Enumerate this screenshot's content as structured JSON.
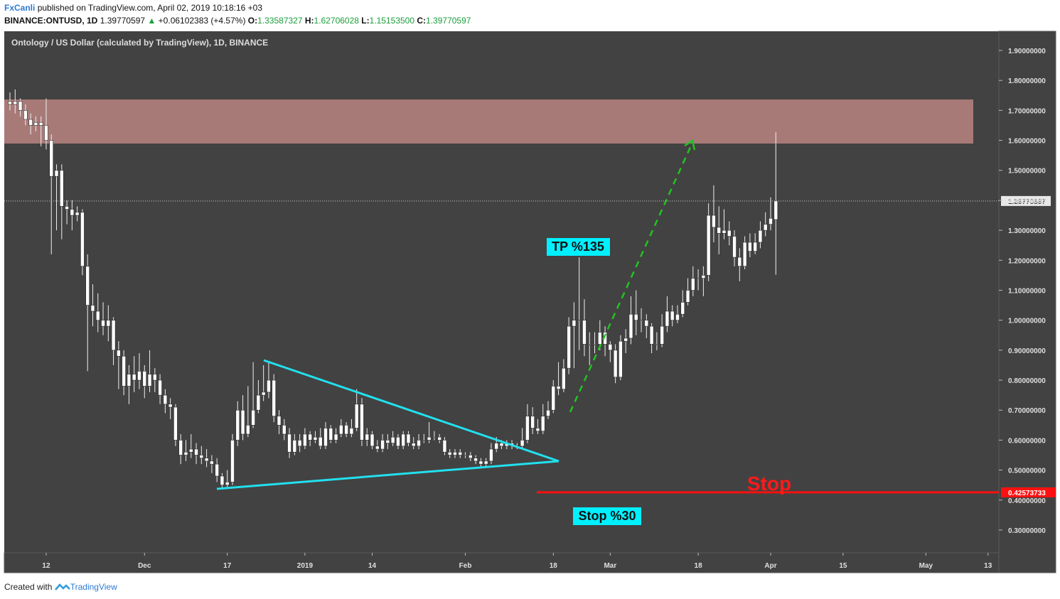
{
  "header": {
    "author": "FxCanli",
    "published": "published on TradingView.com, April 02, 2019 10:18:16 +03",
    "symbol": "BINANCE:ONTUSD, 1D",
    "last": "1.39770597",
    "change": "+0.06102383 (+4.57%)",
    "o_label": "O:",
    "o_value": "1.33587327",
    "h_label": "H:",
    "h_value": "1.62706028",
    "l_label": "L:",
    "l_value": "1.15153500",
    "c_label": "C:",
    "c_value": "1.39770597"
  },
  "footer": {
    "text": "Created with",
    "brand": "TradingView"
  },
  "chart_data": {
    "type": "candlestick",
    "title": "Ontology / US Dollar (calculated by TradingView), 1D, BINANCE",
    "up_color": "#ffffff",
    "down_color": "#ffffff",
    "xlim": [
      -1.1,
      191.1
    ],
    "xticks": [
      {
        "value": 7,
        "label": "12"
      },
      {
        "value": 26,
        "label": "Dec"
      },
      {
        "value": 42,
        "label": "17"
      },
      {
        "value": 57,
        "label": "2019"
      },
      {
        "value": 70,
        "label": "14"
      },
      {
        "value": 88,
        "label": "Feb"
      },
      {
        "value": 105,
        "label": "18"
      },
      {
        "value": 116,
        "label": "Mar"
      },
      {
        "value": 133,
        "label": "18"
      },
      {
        "value": 147,
        "label": "Apr"
      },
      {
        "value": 161,
        "label": "15"
      },
      {
        "value": 177,
        "label": "May"
      },
      {
        "value": 189,
        "label": "13"
      }
    ],
    "ylim": [
      0.224,
      1.964
    ],
    "yticks": [
      {
        "value": 0.3,
        "label": "0.30000000"
      },
      {
        "value": 0.4,
        "label": "0.40000000"
      },
      {
        "value": 0.5,
        "label": "0.50000000"
      },
      {
        "value": 0.6,
        "label": "0.60000000"
      },
      {
        "value": 0.7,
        "label": "0.70000000"
      },
      {
        "value": 0.8,
        "label": "0.80000000"
      },
      {
        "value": 0.9,
        "label": "0.90000000"
      },
      {
        "value": 1.0,
        "label": "1.00000000"
      },
      {
        "value": 1.1,
        "label": "1.10000000"
      },
      {
        "value": 1.2,
        "label": "1.20000000"
      },
      {
        "value": 1.3,
        "label": "1.30000000"
      },
      {
        "value": 1.4,
        "label": "1.40000000"
      },
      {
        "value": 1.5,
        "label": "1.50000000"
      },
      {
        "value": 1.6,
        "label": "1.60000000"
      },
      {
        "value": 1.7,
        "label": "1.70000000"
      },
      {
        "value": 1.8,
        "label": "1.80000000"
      },
      {
        "value": 1.9,
        "label": "1.90000000"
      }
    ],
    "open": [
      1.73,
      1.72,
      1.73,
      1.7,
      1.67,
      1.65,
      1.66,
      1.65,
      1.6,
      1.48,
      1.5,
      1.38,
      1.37,
      1.35,
      1.36,
      1.18,
      1.05,
      1.03,
      1.0,
      0.98,
      1.0,
      0.9,
      0.88,
      0.78,
      0.82,
      0.8,
      0.83,
      0.78,
      0.82,
      0.8,
      0.75,
      0.72,
      0.71,
      0.6,
      0.55,
      0.56,
      0.57,
      0.55,
      0.54,
      0.53,
      0.52,
      0.48,
      0.45,
      0.46,
      0.6,
      0.7,
      0.62,
      0.65,
      0.7,
      0.75,
      0.76,
      0.8,
      0.68,
      0.65,
      0.62,
      0.56,
      0.6,
      0.58,
      0.62,
      0.6,
      0.61,
      0.58,
      0.64,
      0.6,
      0.62,
      0.65,
      0.62,
      0.64,
      0.72,
      0.6,
      0.62,
      0.58,
      0.57,
      0.6,
      0.59,
      0.61,
      0.58,
      0.62,
      0.59,
      0.58,
      0.6,
      0.6,
      0.61,
      0.61,
      0.6,
      0.56,
      0.55,
      0.56,
      0.55,
      0.55,
      0.54,
      0.53,
      0.52,
      0.53,
      0.57,
      0.59,
      0.58,
      0.59,
      0.58,
      0.58,
      0.6,
      0.68,
      0.64,
      0.63,
      0.68,
      0.7,
      0.78,
      0.77,
      0.84,
      0.98,
      1.0,
      1.0,
      0.92,
      0.92,
      0.92,
      0.96,
      0.92,
      0.9,
      0.81,
      0.93,
      0.94,
      1.02,
      1.0,
      1.0,
      0.98,
      0.92,
      0.92,
      0.98,
      1.03,
      1.0,
      1.02,
      1.06,
      1.1,
      1.14,
      1.14,
      1.15,
      1.35,
      1.31,
      1.29,
      1.3,
      1.28,
      1.21,
      1.18,
      1.26,
      1.23,
      1.26,
      1.3,
      1.32,
      1.33587327
    ],
    "high": [
      1.76,
      1.77,
      1.74,
      1.72,
      1.69,
      1.68,
      1.68,
      1.74,
      1.62,
      1.52,
      1.52,
      1.4,
      1.4,
      1.38,
      1.37,
      1.22,
      1.12,
      1.09,
      1.06,
      1.05,
      1.01,
      0.93,
      0.9,
      0.85,
      0.88,
      0.89,
      0.85,
      0.9,
      0.84,
      0.82,
      0.77,
      0.74,
      0.72,
      0.62,
      0.6,
      0.62,
      0.59,
      0.58,
      0.57,
      0.55,
      0.54,
      0.49,
      0.5,
      0.62,
      0.73,
      0.75,
      0.78,
      0.86,
      0.8,
      0.85,
      0.86,
      0.82,
      0.7,
      0.67,
      0.64,
      0.62,
      0.62,
      0.64,
      0.63,
      0.63,
      0.64,
      0.66,
      0.65,
      0.64,
      0.67,
      0.66,
      0.67,
      0.77,
      0.74,
      0.64,
      0.63,
      0.6,
      0.62,
      0.62,
      0.63,
      0.62,
      0.63,
      0.63,
      0.61,
      0.62,
      0.62,
      0.66,
      0.63,
      0.62,
      0.61,
      0.57,
      0.57,
      0.57,
      0.56,
      0.56,
      0.55,
      0.54,
      0.54,
      0.59,
      0.61,
      0.6,
      0.6,
      0.6,
      0.59,
      0.64,
      0.72,
      0.71,
      0.67,
      0.72,
      0.73,
      0.8,
      0.86,
      0.87,
      1.01,
      1.06,
      1.21,
      1.07,
      0.96,
      0.96,
      1.0,
      0.98,
      0.93,
      0.92,
      0.95,
      0.97,
      1.08,
      1.1,
      1.04,
      1.02,
      0.99,
      0.96,
      1.02,
      1.08,
      1.05,
      1.05,
      1.1,
      1.14,
      1.18,
      1.17,
      1.18,
      1.39,
      1.45,
      1.38,
      1.37,
      1.33,
      1.3,
      1.24,
      1.28,
      1.29,
      1.29,
      1.33,
      1.36,
      1.41,
      1.62706028
    ],
    "low": [
      1.7,
      1.69,
      1.68,
      1.65,
      1.62,
      1.63,
      1.58,
      1.57,
      1.22,
      1.3,
      1.27,
      1.32,
      1.3,
      1.33,
      1.15,
      0.83,
      0.98,
      0.96,
      0.95,
      0.93,
      0.85,
      0.77,
      0.75,
      0.72,
      0.76,
      0.77,
      0.74,
      0.76,
      0.76,
      0.72,
      0.69,
      0.67,
      0.58,
      0.52,
      0.53,
      0.54,
      0.52,
      0.52,
      0.51,
      0.49,
      0.46,
      0.44,
      0.44,
      0.45,
      0.58,
      0.6,
      0.61,
      0.64,
      0.69,
      0.73,
      0.74,
      0.66,
      0.62,
      0.6,
      0.54,
      0.55,
      0.56,
      0.57,
      0.58,
      0.59,
      0.57,
      0.57,
      0.59,
      0.59,
      0.61,
      0.61,
      0.61,
      0.63,
      0.58,
      0.58,
      0.57,
      0.56,
      0.56,
      0.57,
      0.58,
      0.57,
      0.57,
      0.58,
      0.57,
      0.57,
      0.59,
      0.59,
      0.6,
      0.59,
      0.55,
      0.54,
      0.54,
      0.54,
      0.54,
      0.53,
      0.52,
      0.51,
      0.51,
      0.52,
      0.56,
      0.57,
      0.57,
      0.57,
      0.57,
      0.57,
      0.59,
      0.62,
      0.62,
      0.62,
      0.67,
      0.69,
      0.75,
      0.76,
      0.82,
      0.84,
      0.9,
      0.88,
      0.85,
      0.89,
      0.9,
      0.88,
      0.86,
      0.79,
      0.8,
      0.89,
      0.92,
      0.95,
      0.96,
      0.94,
      0.89,
      0.9,
      0.91,
      0.96,
      0.98,
      0.99,
      1.01,
      1.05,
      1.08,
      1.1,
      1.08,
      1.13,
      1.26,
      1.22,
      1.27,
      1.25,
      1.18,
      1.13,
      1.17,
      1.21,
      1.22,
      1.24,
      1.28,
      1.3,
      1.151535
    ],
    "close": [
      1.72,
      1.73,
      1.7,
      1.67,
      1.65,
      1.66,
      1.65,
      1.6,
      1.48,
      1.5,
      1.38,
      1.37,
      1.35,
      1.36,
      1.18,
      1.05,
      1.03,
      1.0,
      0.98,
      1.0,
      0.9,
      0.88,
      0.78,
      0.82,
      0.8,
      0.83,
      0.78,
      0.82,
      0.8,
      0.75,
      0.72,
      0.71,
      0.6,
      0.55,
      0.56,
      0.57,
      0.55,
      0.54,
      0.53,
      0.52,
      0.48,
      0.45,
      0.46,
      0.6,
      0.7,
      0.62,
      0.65,
      0.7,
      0.75,
      0.76,
      0.8,
      0.68,
      0.65,
      0.62,
      0.56,
      0.6,
      0.58,
      0.62,
      0.6,
      0.61,
      0.58,
      0.64,
      0.6,
      0.62,
      0.65,
      0.62,
      0.64,
      0.72,
      0.6,
      0.62,
      0.58,
      0.57,
      0.6,
      0.59,
      0.61,
      0.58,
      0.62,
      0.59,
      0.58,
      0.6,
      0.6,
      0.61,
      0.61,
      0.6,
      0.56,
      0.55,
      0.56,
      0.55,
      0.55,
      0.54,
      0.53,
      0.52,
      0.53,
      0.57,
      0.59,
      0.58,
      0.59,
      0.58,
      0.58,
      0.6,
      0.68,
      0.64,
      0.63,
      0.68,
      0.7,
      0.78,
      0.77,
      0.84,
      0.98,
      1.0,
      1.0,
      0.92,
      0.92,
      0.92,
      0.96,
      0.92,
      0.9,
      0.81,
      0.93,
      0.94,
      1.02,
      1.0,
      1.0,
      0.98,
      0.92,
      0.92,
      0.98,
      1.03,
      1.0,
      1.02,
      1.06,
      1.1,
      1.14,
      1.14,
      1.15,
      1.35,
      1.31,
      1.29,
      1.3,
      1.28,
      1.21,
      1.18,
      1.26,
      1.23,
      1.26,
      1.3,
      1.32,
      1.34,
      1.39770597
    ],
    "last_price": {
      "value": 1.39770597,
      "label": "1.39770597"
    },
    "stop_price": {
      "value": 0.42573733,
      "label": "0.42573733"
    },
    "annotations": {
      "tp": "TP %135",
      "stop": "Stop",
      "stop_pct": "Stop %30"
    }
  }
}
